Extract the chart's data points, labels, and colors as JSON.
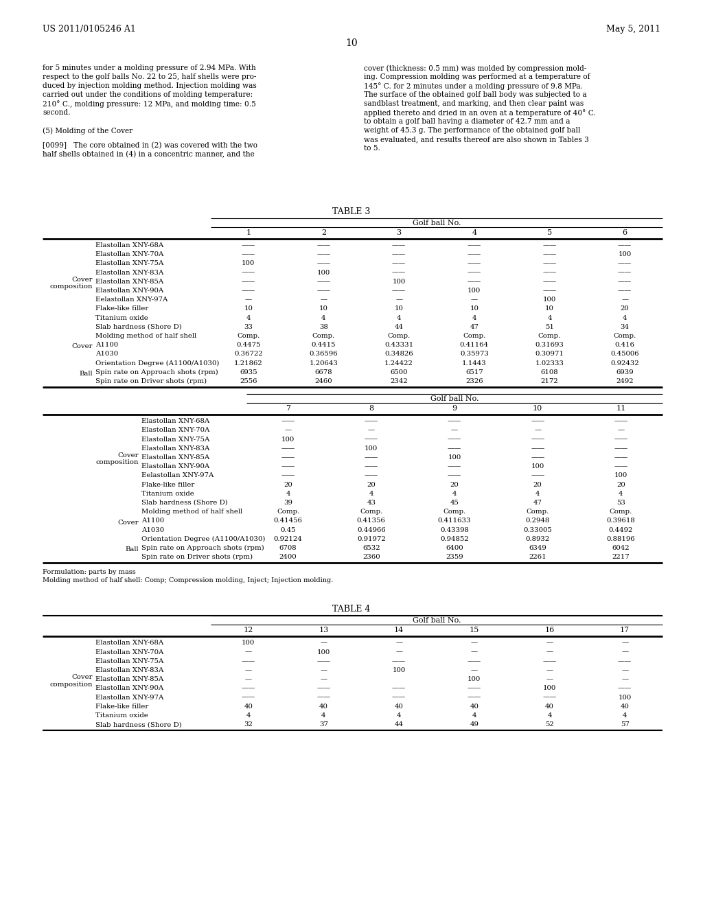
{
  "page_header_left": "US 2011/0105246 A1",
  "page_header_right": "May 5, 2011",
  "page_number": "10",
  "para_left": "for 5 minutes under a molding pressure of 2.94 MPa. With\nrespect to the golf balls No. 22 to 25, half shells were pro-\nduced by injection molding method. Injection molding was\ncarried out under the conditions of molding temperature:\n210° C., molding pressure: 12 MPa, and molding time: 0.5\nsecond.\n\n(5) Molding of the Cover\n\n[0099]   The core obtained in (2) was covered with the two\nhalf shells obtained in (4) in a concentric manner, and the",
  "para_right": "cover (thickness: 0.5 mm) was molded by compression mold-\ning. Compression molding was performed at a temperature of\n145° C. for 2 minutes under a molding pressure of 9.8 MPa.\nThe surface of the obtained golf ball body was subjected to a\nsandblast treatment, and marking, and then clear paint was\napplied thereto and dried in an oven at a temperature of 40° C.\nto obtain a golf ball having a diameter of 42.7 mm and a\nweight of 45.3 g. The performance of the obtained golf ball\nwas evaluated, and results thereof are also shown in Tables 3\nto 5.",
  "table3_title": "TABLE 3",
  "table3_subtitle": "Golf ball No.",
  "table3_cols": [
    "1",
    "2",
    "3",
    "4",
    "5",
    "6"
  ],
  "table3_row_groups": [
    {
      "group_label": "Cover\ncomposition",
      "rows": [
        [
          "Elastollan XNY-68A",
          "——",
          "——",
          "——",
          "——",
          "——",
          "——"
        ],
        [
          "Elastollan XNY-70A",
          "——",
          "——",
          "——",
          "——",
          "——",
          "100"
        ],
        [
          "Elastollan XNY-75A",
          "100",
          "——",
          "——",
          "——",
          "——",
          "——"
        ],
        [
          "Elastollan XNY-83A",
          "——",
          "100",
          "——",
          "——",
          "——",
          "——"
        ],
        [
          "Elastollan XNY-85A",
          "——",
          "——",
          "100",
          "——",
          "——",
          "——"
        ],
        [
          "Elastollan XNY-90A",
          "——",
          "——",
          "——",
          "100",
          "——",
          "——"
        ],
        [
          "Eelastollan XNY-97A",
          "—",
          "—",
          "—",
          "—",
          "100",
          "—"
        ],
        [
          "Flake-like filler",
          "10",
          "10",
          "10",
          "10",
          "10",
          "20"
        ],
        [
          "Titanium oxide",
          "4",
          "4",
          "4",
          "4",
          "4",
          "4"
        ],
        [
          "Slab hardness (Shore D)",
          "33",
          "38",
          "44",
          "47",
          "51",
          "34"
        ]
      ]
    },
    {
      "group_label": "Cover",
      "rows": [
        [
          "Molding method of half shell",
          "Comp.",
          "Comp.",
          "Comp.",
          "Comp.",
          "Comp.",
          "Comp."
        ],
        [
          "A1100",
          "0.4475",
          "0.4415",
          "0.43331",
          "0.41164",
          "0.31693",
          "0.416"
        ],
        [
          "A1030",
          "0.36722",
          "0.36596",
          "0.34826",
          "0.35973",
          "0.30971",
          "0.45006"
        ],
        [
          "Orientation Degree (A1100/A1030)",
          "1.21862",
          "1.20643",
          "1.24422",
          "1.1443",
          "1.02333",
          "0.92432"
        ]
      ]
    },
    {
      "group_label": "Ball",
      "rows": [
        [
          "Spin rate on Approach shots (rpm)",
          "6935",
          "6678",
          "6500",
          "6517",
          "6108",
          "6939"
        ],
        [
          "Spin rate on Driver shots (rpm)",
          "2556",
          "2460",
          "2342",
          "2326",
          "2172",
          "2492"
        ]
      ]
    }
  ],
  "table3b_subtitle": "Golf ball No.",
  "table3b_cols": [
    "7",
    "8",
    "9",
    "10",
    "11"
  ],
  "table3b_row_groups": [
    {
      "group_label": "Cover\ncomposition",
      "rows": [
        [
          "Elastollan XNY-68A",
          "——",
          "——",
          "——",
          "——",
          "——"
        ],
        [
          "Elastollan XNY-70A",
          "—",
          "—",
          "—",
          "—",
          "—"
        ],
        [
          "Elastollan XNY-75A",
          "100",
          "——",
          "——",
          "——",
          "——"
        ],
        [
          "Elastollan XNY-83A",
          "——",
          "100",
          "——",
          "——",
          "——"
        ],
        [
          "Elastollan XNY-85A",
          "——",
          "——",
          "100",
          "——",
          "——"
        ],
        [
          "Elastollan XNY-90A",
          "——",
          "——",
          "——",
          "100",
          "——"
        ],
        [
          "Eelastollan XNY-97A",
          "——",
          "——",
          "——",
          "——",
          "100"
        ],
        [
          "Flake-like filler",
          "20",
          "20",
          "20",
          "20",
          "20"
        ],
        [
          "Titanium oxide",
          "4",
          "4",
          "4",
          "4",
          "4"
        ],
        [
          "Slab hardness (Shore D)",
          "39",
          "43",
          "45",
          "47",
          "53"
        ]
      ]
    },
    {
      "group_label": "Cover",
      "rows": [
        [
          "Molding method of half shell",
          "Comp.",
          "Comp.",
          "Comp.",
          "Comp.",
          "Comp."
        ],
        [
          "A1100",
          "0.41456",
          "0.41356",
          "0.411633",
          "0.2948",
          "0.39618"
        ],
        [
          "A1030",
          "0.45",
          "0.44966",
          "0.43398",
          "0.33005",
          "0.4492"
        ],
        [
          "Orientation Degree (A1100/A1030)",
          "0.92124",
          "0.91972",
          "0.94852",
          "0.8932",
          "0.88196"
        ]
      ]
    },
    {
      "group_label": "Ball",
      "rows": [
        [
          "Spin rate on Approach shots (rpm)",
          "6708",
          "6532",
          "6400",
          "6349",
          "6042"
        ],
        [
          "Spin rate on Driver shots (rpm)",
          "2400",
          "2360",
          "2359",
          "2261",
          "2217"
        ]
      ]
    }
  ],
  "footnotes": [
    "Formulation: parts by mass",
    "Molding method of half shell: Comp; Compression molding, Inject; Injection molding."
  ],
  "table4_title": "TABLE 4",
  "table4_subtitle": "Golf ball No.",
  "table4_cols": [
    "12",
    "13",
    "14",
    "15",
    "16",
    "17"
  ],
  "table4_row_groups": [
    {
      "group_label": "Cover\ncomposition",
      "rows": [
        [
          "Elastollan XNY-68A",
          "100",
          "—",
          "—",
          "—",
          "—",
          "—"
        ],
        [
          "Elastollan XNY-70A",
          "—",
          "100",
          "—",
          "—",
          "—",
          "—"
        ],
        [
          "Elastollan XNY-75A",
          "——",
          "——",
          "——",
          "——",
          "——",
          "——"
        ],
        [
          "Elastollan XNY-83A",
          "—",
          "—",
          "100",
          "—",
          "—",
          "—"
        ],
        [
          "Elastollan XNY-85A",
          "—",
          "—",
          "",
          "100",
          "—",
          "—"
        ],
        [
          "Elastollan XNY-90A",
          "——",
          "——",
          "——",
          "——",
          "100",
          "——"
        ],
        [
          "Elastollan XNY-97A",
          "——",
          "——",
          "——",
          "——",
          "——",
          "100"
        ],
        [
          "Flake-like filler",
          "40",
          "40",
          "40",
          "40",
          "40",
          "40"
        ],
        [
          "Titanium oxide",
          "4",
          "4",
          "4",
          "4",
          "4",
          "4"
        ],
        [
          "Slab hardness (Shore D)",
          "32",
          "37",
          "44",
          "49",
          "52",
          "57"
        ]
      ]
    }
  ]
}
